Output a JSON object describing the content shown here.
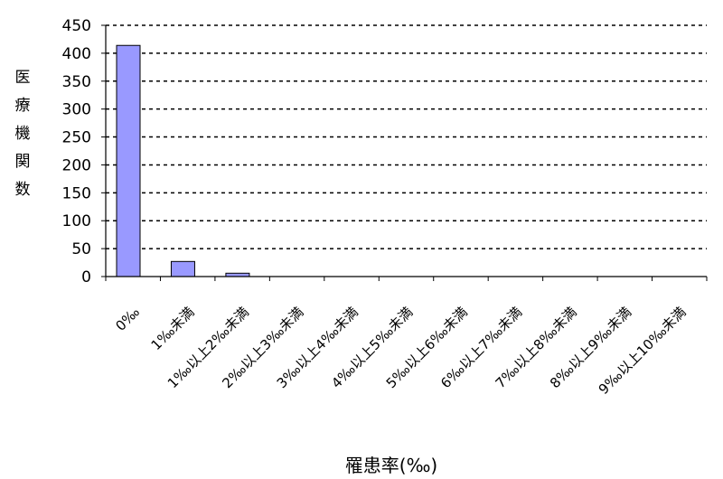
{
  "chart_data": {
    "type": "bar",
    "categories": [
      "0‰",
      "1‰未満",
      "1‰以上2‰未満",
      "2‰以上3‰未満",
      "3‰以上4‰未満",
      "4‰以上5‰未満",
      "5‰以上6‰未満",
      "6‰以上7‰未満",
      "7‰以上8‰未満",
      "8‰以上9‰未満",
      "9‰以上10‰未満"
    ],
    "values": [
      414,
      27,
      6,
      0,
      0,
      0,
      0,
      0,
      0,
      0,
      0
    ],
    "ylabel": "医療機関数",
    "xlabel": "罹患率(‰)",
    "ylim": [
      0,
      450
    ],
    "yticks": [
      0,
      50,
      100,
      150,
      200,
      250,
      300,
      350,
      400,
      450
    ],
    "grid": true,
    "grid_style": "dashed",
    "colors": {
      "bar_fill": "#9999ff",
      "bar_stroke": "#000000",
      "grid": "#000000",
      "axis": "#000000"
    }
  }
}
